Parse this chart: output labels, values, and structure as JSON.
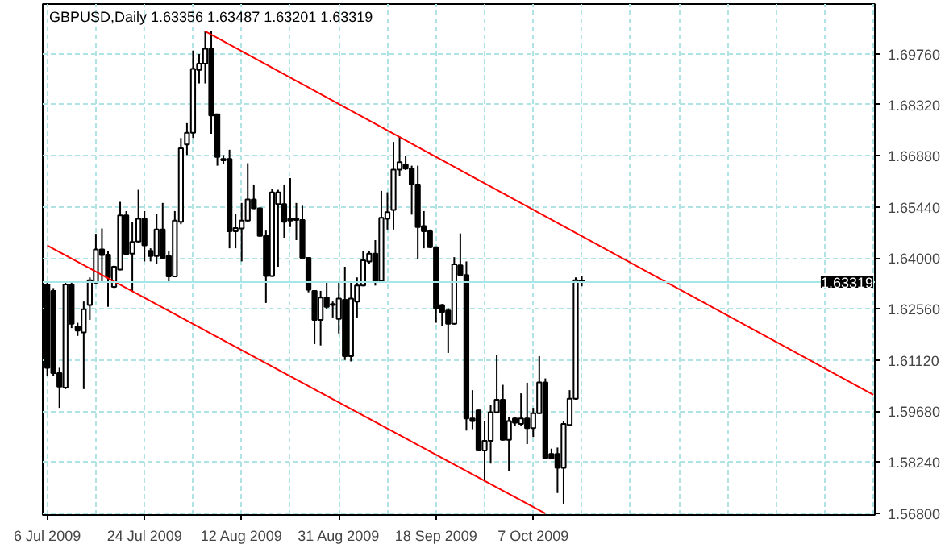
{
  "chart_data": {
    "type": "candlestick",
    "title": "GBPUSD,Daily  1.63356 1.63487 1.63201 1.63319",
    "categories": [
      "6 Jul 2009",
      null,
      null,
      null,
      null,
      null,
      null,
      null,
      null,
      null,
      null,
      null,
      null,
      null,
      null,
      null,
      "24 Jul 2009",
      null,
      null,
      null,
      null,
      null,
      null,
      null,
      null,
      null,
      null,
      null,
      null,
      null,
      null,
      null,
      "12 Aug 2009",
      null,
      null,
      null,
      null,
      null,
      null,
      null,
      null,
      null,
      null,
      null,
      null,
      null,
      null,
      null,
      "31 Aug 2009",
      null,
      null,
      null,
      null,
      null,
      null,
      null,
      null,
      null,
      null,
      null,
      null,
      null,
      null,
      null,
      "18 Sep 2009",
      null,
      null,
      null,
      null,
      null,
      null,
      null,
      null,
      null,
      null,
      null,
      null,
      null,
      null,
      null,
      "7 Oct 2009",
      null,
      null,
      null,
      null,
      null,
      null,
      null,
      null,
      null,
      null,
      null,
      null,
      null,
      null,
      null,
      null,
      null,
      null,
      null,
      null,
      null,
      null,
      null,
      null,
      null,
      null,
      null,
      null,
      null,
      null,
      null,
      null,
      null,
      null,
      null,
      null,
      null,
      null,
      null,
      null,
      null,
      null,
      null,
      null,
      null,
      null,
      null,
      null,
      null,
      null,
      null,
      null,
      null,
      null,
      null,
      null
    ],
    "ohlc": [
      [
        1.6325,
        1.633,
        1.6067,
        1.609
      ],
      [
        1.6307,
        1.6315,
        1.6067,
        1.6075
      ],
      [
        1.6075,
        1.609,
        1.5977,
        1.6037
      ],
      [
        1.6034,
        1.633,
        1.603,
        1.6325
      ],
      [
        1.6325,
        1.633,
        1.6202,
        1.6214
      ],
      [
        1.6207,
        1.6217,
        1.618,
        1.6195
      ],
      [
        1.619,
        1.6277,
        1.603,
        1.6255
      ],
      [
        1.6267,
        1.6345,
        1.6225,
        1.6337
      ],
      [
        1.633,
        1.6468,
        1.6328,
        1.6424
      ],
      [
        1.6424,
        1.6483,
        1.633,
        1.6408
      ],
      [
        1.6409,
        1.642,
        1.6262,
        1.6345
      ],
      [
        1.6318,
        1.6378,
        1.6315,
        1.6375
      ],
      [
        1.6367,
        1.6558,
        1.6365,
        1.652
      ],
      [
        1.652,
        1.6532,
        1.6409,
        1.6411
      ],
      [
        1.6412,
        1.6502,
        1.6307,
        1.6445
      ],
      [
        1.6446,
        1.6592,
        1.6442,
        1.651
      ],
      [
        1.651,
        1.6532,
        1.639,
        1.6435
      ],
      [
        1.642,
        1.6427,
        1.639,
        1.6405
      ],
      [
        1.6405,
        1.6525,
        1.6382,
        1.648
      ],
      [
        1.648,
        1.6555,
        1.6397,
        1.64
      ],
      [
        1.6405,
        1.642,
        1.6333,
        1.6348
      ],
      [
        1.6348,
        1.6532,
        1.6346,
        1.6505
      ],
      [
        1.6502,
        1.6738,
        1.6495,
        1.6709
      ],
      [
        1.672,
        1.678,
        1.669,
        1.6753
      ],
      [
        1.6753,
        1.6985,
        1.6738,
        1.6933
      ],
      [
        1.693,
        1.6975,
        1.6892,
        1.6948
      ],
      [
        1.6948,
        1.7039,
        1.6892,
        1.699
      ],
      [
        1.699,
        1.7039,
        1.675,
        1.6802
      ],
      [
        1.6805,
        1.6807,
        1.666,
        1.6685
      ],
      [
        1.6679,
        1.669,
        1.6664,
        1.6675
      ],
      [
        1.6679,
        1.6705,
        1.6427,
        1.6475
      ],
      [
        1.6475,
        1.6525,
        1.6427,
        1.6484
      ],
      [
        1.6483,
        1.6555,
        1.639,
        1.6505
      ],
      [
        1.6505,
        1.6667,
        1.6502,
        1.6565
      ],
      [
        1.6565,
        1.6607,
        1.6538,
        1.654
      ],
      [
        1.654,
        1.6542,
        1.646,
        1.6462
      ],
      [
        1.6462,
        1.6477,
        1.6273,
        1.6349
      ],
      [
        1.6349,
        1.6595,
        1.6347,
        1.6585
      ],
      [
        1.6552,
        1.6592,
        1.6375,
        1.6585
      ],
      [
        1.6552,
        1.6607,
        1.6457,
        1.6502
      ],
      [
        1.651,
        1.6625,
        1.6487,
        1.6505
      ],
      [
        1.651,
        1.6555,
        1.645,
        1.6507
      ],
      [
        1.6507,
        1.6547,
        1.6398,
        1.64
      ],
      [
        1.64,
        1.6402,
        1.6303,
        1.631
      ],
      [
        1.6307,
        1.6309,
        1.6157,
        1.6225
      ],
      [
        1.6225,
        1.6307,
        1.6153,
        1.6288
      ],
      [
        1.6288,
        1.633,
        1.6255,
        1.6262
      ],
      [
        1.627,
        1.6277,
        1.6232,
        1.6267
      ],
      [
        1.6228,
        1.633,
        1.6187,
        1.6285
      ],
      [
        1.6282,
        1.6375,
        1.6112,
        1.6123
      ],
      [
        1.6123,
        1.633,
        1.6108,
        1.6285
      ],
      [
        1.6277,
        1.6345,
        1.6232,
        1.6322
      ],
      [
        1.6322,
        1.642,
        1.632,
        1.6393
      ],
      [
        1.639,
        1.642,
        1.6382,
        1.6412
      ],
      [
        1.6412,
        1.645,
        1.6322,
        1.6334
      ],
      [
        1.6334,
        1.6589,
        1.6331,
        1.6513
      ],
      [
        1.651,
        1.6585,
        1.648,
        1.6529
      ],
      [
        1.6535,
        1.6727,
        1.648,
        1.6649
      ],
      [
        1.6649,
        1.6742,
        1.663,
        1.667
      ],
      [
        1.6663,
        1.6687,
        1.6648,
        1.6652
      ],
      [
        1.6652,
        1.666,
        1.6522,
        1.6607
      ],
      [
        1.6607,
        1.666,
        1.6397,
        1.6487
      ],
      [
        1.649,
        1.6532,
        1.6427,
        1.6475
      ],
      [
        1.6475,
        1.648,
        1.6428,
        1.643
      ],
      [
        1.643,
        1.6432,
        1.6217,
        1.6258
      ],
      [
        1.6267,
        1.627,
        1.6207,
        1.6247
      ],
      [
        1.6252,
        1.6258,
        1.6132,
        1.6214
      ],
      [
        1.6214,
        1.6402,
        1.6212,
        1.6382
      ],
      [
        1.6379,
        1.6469,
        1.635,
        1.6352
      ],
      [
        1.6352,
        1.639,
        1.5913,
        1.5947
      ],
      [
        1.5947,
        1.6027,
        1.5917,
        1.594
      ],
      [
        1.597,
        1.5972,
        1.5855,
        1.5857
      ],
      [
        1.5857,
        1.594,
        1.577,
        1.5884
      ],
      [
        1.5884,
        1.5985,
        1.582,
        1.5965
      ],
      [
        1.5965,
        1.6127,
        1.5962,
        1.6
      ],
      [
        1.6,
        1.6042,
        1.5885,
        1.5887
      ],
      [
        1.5887,
        1.5952,
        1.58,
        1.594
      ],
      [
        1.5947,
        1.5952,
        1.5925,
        1.5935
      ],
      [
        1.5932,
        1.6018,
        1.5925,
        1.5947
      ],
      [
        1.5947,
        1.6048,
        1.5875,
        1.592
      ],
      [
        1.592,
        1.5977,
        1.5895,
        1.5962
      ],
      [
        1.5962,
        1.6123,
        1.596,
        1.6049
      ],
      [
        1.6049,
        1.606,
        1.5832,
        1.5835
      ],
      [
        1.5847,
        1.5862,
        1.5832,
        1.5835
      ],
      [
        1.5847,
        1.5865,
        1.5737,
        1.5808
      ],
      [
        1.5808,
        1.594,
        1.5707,
        1.5932
      ],
      [
        1.5929,
        1.6027,
        1.5927,
        1.6003
      ],
      [
        1.6003,
        1.6345,
        1.6,
        1.6337
      ],
      [
        1.63356,
        1.63487,
        1.63201,
        1.63319
      ],
      null,
      null,
      null,
      null,
      null,
      null,
      null,
      null,
      null,
      null,
      null,
      null,
      null,
      null,
      null,
      null,
      null,
      null,
      null,
      null,
      null,
      null,
      null,
      null,
      null,
      null,
      null,
      null,
      null,
      null,
      null,
      null,
      null,
      null,
      null,
      null,
      null,
      null,
      null,
      null,
      null,
      null,
      null,
      null,
      null,
      null,
      null,
      null
    ],
    "series": [
      {
        "type": "line",
        "color": "#ff0000",
        "values": [
          null,
          null,
          null,
          null,
          null,
          null,
          null,
          null,
          null,
          null,
          null,
          null,
          null,
          null,
          null,
          null,
          null,
          null,
          null,
          null,
          null,
          null,
          null,
          null,
          null,
          null,
          1.7039,
          null,
          null,
          null,
          null,
          null,
          null,
          null,
          null,
          null,
          null,
          null,
          null,
          null,
          null,
          null,
          null,
          null,
          null,
          null,
          null,
          null,
          null,
          null,
          null,
          null,
          null,
          null,
          null,
          null,
          null,
          null,
          null,
          null,
          null,
          null,
          null,
          null,
          null,
          null,
          null,
          null,
          null,
          null,
          null,
          null,
          null,
          null,
          null,
          null,
          null,
          null,
          null,
          null,
          null,
          null,
          null,
          null,
          null,
          null,
          null,
          null,
          null,
          null,
          null,
          null,
          null,
          null,
          null,
          null,
          null,
          null,
          null,
          null,
          null,
          null,
          null,
          null,
          null,
          null,
          null,
          null,
          null,
          null,
          null,
          null,
          null,
          null,
          null,
          null,
          null,
          null,
          null,
          null,
          null,
          null,
          null,
          null,
          null,
          null,
          null,
          null,
          null,
          null,
          null,
          null,
          null,
          null,
          null,
          null,
          1.6014
        ]
      },
      {
        "type": "line",
        "color": "#ff0000",
        "values": [
          1.6435,
          null,
          null,
          null,
          null,
          null,
          null,
          null,
          null,
          null,
          null,
          null,
          null,
          null,
          null,
          null,
          null,
          null,
          null,
          null,
          null,
          null,
          null,
          null,
          null,
          null,
          null,
          null,
          null,
          null,
          null,
          null,
          null,
          null,
          null,
          null,
          null,
          null,
          null,
          null,
          null,
          null,
          null,
          null,
          null,
          null,
          null,
          null,
          null,
          null,
          null,
          null,
          null,
          null,
          null,
          null,
          null,
          null,
          null,
          null,
          null,
          null,
          null,
          null,
          null,
          null,
          null,
          null,
          null,
          null,
          null,
          null,
          null,
          null,
          null,
          null,
          null,
          null,
          null,
          null,
          null,
          null,
          1.5679,
          null,
          null,
          null,
          null,
          null,
          null,
          null,
          null,
          null,
          null,
          null,
          null,
          null,
          null,
          null,
          null,
          null,
          null,
          null,
          null,
          null,
          null,
          null,
          null,
          null,
          null,
          null,
          null,
          null,
          null,
          null,
          null,
          null,
          null,
          null,
          null,
          null,
          null,
          null,
          null,
          null,
          null,
          null,
          null,
          null,
          null,
          null,
          null,
          null,
          null,
          null,
          null,
          null,
          null
        ]
      }
    ],
    "ylim": [
      1.5675,
      1.7116
    ],
    "yticks": [
      {
        "value": 1.568,
        "label": "1.56800"
      },
      {
        "value": 1.5824,
        "label": "1.58240"
      },
      {
        "value": 1.5968,
        "label": "1.59680"
      },
      {
        "value": 1.6112,
        "label": "1.61120"
      },
      {
        "value": 1.6256,
        "label": "1.62560"
      },
      {
        "value": 1.64,
        "label": "1.64000"
      },
      {
        "value": 1.6544,
        "label": "1.65440"
      },
      {
        "value": 1.6688,
        "label": "1.66880"
      },
      {
        "value": 1.6832,
        "label": "1.68320"
      },
      {
        "value": 1.6976,
        "label": "1.69760"
      }
    ],
    "ref_lines": [
      {
        "axis": "y",
        "value": 1.63319,
        "label": "1.63319",
        "color": "#a6e6e6"
      }
    ],
    "grid": true
  }
}
